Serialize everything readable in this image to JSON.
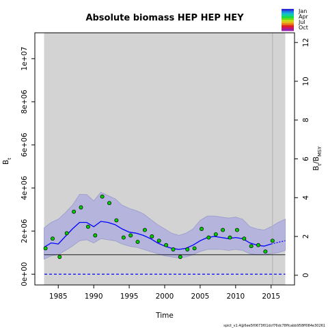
{
  "chart_data": {
    "type": "line",
    "title": "Absolute biomass HEP HEP HEY",
    "xlabel": "Time",
    "ylabel": "Bt",
    "ylabel_right": "Bt/BMSY",
    "xlim": [
      1981.7,
      2018.3
    ],
    "ylim": [
      -500000,
      11200000
    ],
    "ylim_right": [
      -0.5,
      12.5
    ],
    "x_ticks": [
      1985,
      1990,
      1995,
      2000,
      2005,
      2010,
      2015
    ],
    "y_ticks": [
      0,
      2000000,
      4000000,
      6000000,
      8000000,
      10000000
    ],
    "y_tick_labels": [
      "0e+00",
      "2e+06",
      "4e+06",
      "6e+06",
      "8e+06",
      "1e+07"
    ],
    "y_right_ticks": [
      0,
      2,
      4,
      6,
      8,
      10,
      12
    ],
    "shaded_period": [
      1983,
      2017
    ],
    "vertical_marker_x": 2015.2,
    "reference_lines": [
      {
        "name": "Bmsy",
        "y": 900000,
        "color": "#000000",
        "style": "solid"
      },
      {
        "name": "zero",
        "y": 0,
        "color": "#0000ff",
        "style": "dashed"
      }
    ],
    "series": [
      {
        "kind": "ci_band",
        "x": [
          1983,
          1984,
          1985,
          1986,
          1987,
          1988,
          1989,
          1990,
          1991,
          1992,
          1993,
          1994,
          1995,
          1996,
          1997,
          1998,
          1999,
          2000,
          2001,
          2002,
          2003,
          2004,
          2005,
          2006,
          2007,
          2008,
          2009,
          2010,
          2011,
          2012,
          2013,
          2014,
          2015,
          2016,
          2017
        ],
        "upper": [
          2150000,
          2400000,
          2550000,
          2850000,
          3200000,
          3700000,
          3700000,
          3400000,
          3800000,
          3650000,
          3500000,
          3200000,
          3050000,
          2950000,
          2800000,
          2550000,
          2300000,
          2100000,
          1900000,
          1800000,
          1900000,
          2100000,
          2500000,
          2700000,
          2700000,
          2650000,
          2600000,
          2650000,
          2550000,
          2200000,
          2100000,
          2050000,
          2200000,
          2400000,
          2550000
        ],
        "lower": [
          700000,
          850000,
          900000,
          1100000,
          1300000,
          1550000,
          1600000,
          1450000,
          1650000,
          1600000,
          1550000,
          1400000,
          1300000,
          1250000,
          1150000,
          1050000,
          950000,
          850000,
          800000,
          750000,
          800000,
          900000,
          1050000,
          1150000,
          1150000,
          1150000,
          1100000,
          1150000,
          1100000,
          950000,
          900000,
          900000,
          950000,
          1000000,
          1100000
        ]
      },
      {
        "kind": "line",
        "name": "Bt",
        "color": "#0000ff",
        "x": [
          1983,
          1984,
          1985,
          1986,
          1987,
          1988,
          1989,
          1990,
          1991,
          1992,
          1993,
          1994,
          1995,
          1996,
          1997,
          1998,
          1999,
          2000,
          2001,
          2002,
          2003,
          2004,
          2005,
          2006,
          2007,
          2008,
          2009,
          2010,
          2011,
          2012,
          2013,
          2014,
          2015
        ],
        "y": [
          1250000,
          1450000,
          1400000,
          1750000,
          2100000,
          2400000,
          2400000,
          2200000,
          2450000,
          2400000,
          2300000,
          2100000,
          1950000,
          1900000,
          1800000,
          1650000,
          1450000,
          1300000,
          1200000,
          1150000,
          1200000,
          1350000,
          1550000,
          1700000,
          1750000,
          1700000,
          1650000,
          1700000,
          1650000,
          1450000,
          1350000,
          1300000,
          1400000
        ]
      },
      {
        "kind": "line",
        "name": "Bt forecast",
        "color": "#0000ff",
        "style": "dotted",
        "x": [
          2015,
          2016,
          2017
        ],
        "y": [
          1400000,
          1480000,
          1550000
        ]
      },
      {
        "kind": "points",
        "name": "Index observations",
        "color": "#00cc00",
        "x": [
          1983.2,
          1984.2,
          1985.2,
          1986.2,
          1987.2,
          1988.2,
          1989.2,
          1990.2,
          1991.2,
          1992.2,
          1993.2,
          1994.2,
          1995.2,
          1996.2,
          1997.2,
          1998.2,
          1999.2,
          2000.2,
          2001.2,
          2002.2,
          2003.2,
          2004.2,
          2005.2,
          2006.2,
          2007.2,
          2008.2,
          2009.2,
          2010.2,
          2011.2,
          2012.2,
          2013.2,
          2014.2,
          2015.2
        ],
        "y": [
          1200000,
          1650000,
          800000,
          1900000,
          2900000,
          3100000,
          2200000,
          1800000,
          3600000,
          3300000,
          2500000,
          1700000,
          1800000,
          1500000,
          2050000,
          1750000,
          1550000,
          1350000,
          1150000,
          800000,
          1150000,
          1200000,
          2100000,
          1700000,
          1850000,
          2050000,
          1700000,
          2050000,
          1650000,
          1300000,
          1350000,
          1050000,
          1550000
        ]
      }
    ],
    "legend": {
      "placement": "top-right",
      "labels": [
        "Jan",
        "Apr",
        "Jul",
        "Oct"
      ],
      "colors": [
        "#2b2bd6",
        "#1f7ad9",
        "#14b4d9",
        "#12d09a",
        "#18d94a",
        "#6ad91c",
        "#c5d91c",
        "#e8b61c",
        "#e86f1c",
        "#e0201c",
        "#c2186b",
        "#9b1faf"
      ]
    },
    "footnote": "spict_v1.4@6ee5f0673f01dcf76dc78ffcabb958ff084e30261",
    "colors": {
      "plot_bg": "#d3d3d3",
      "ci_band": "#b4b4dc",
      "ci_edge": "#9a9acc"
    }
  }
}
